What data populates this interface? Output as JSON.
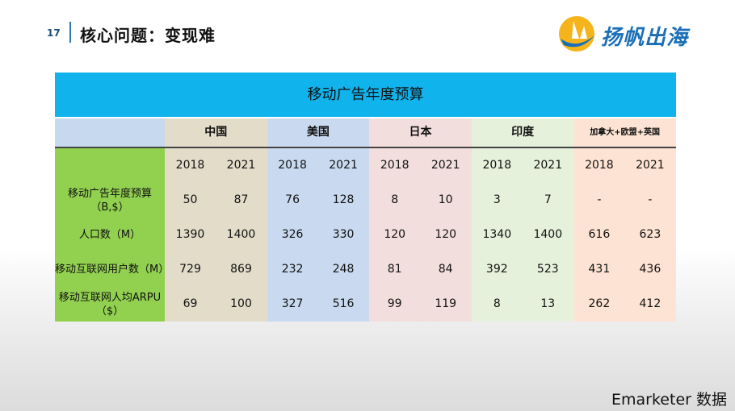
{
  "header": {
    "page_number": "17",
    "title": "核心问题：变现难",
    "logo_text": "扬帆出海"
  },
  "table": {
    "title": "移动广告年度预算",
    "regions": [
      "中国",
      "美国",
      "日本",
      "印度",
      "加拿大+欧盟+英国"
    ],
    "region_colors": [
      "#e2dcc9",
      "#c9daf0",
      "#f3dede",
      "#e6f1dc",
      "#fde3d3"
    ],
    "years": [
      "2018",
      "2021",
      "2018",
      "2021",
      "2018",
      "2021",
      "2018",
      "2021",
      "2018",
      "2021"
    ],
    "rows": [
      {
        "label": "移动广告年度预算（B,$）",
        "values": [
          "50",
          "87",
          "76",
          "128",
          "8",
          "10",
          "3",
          "7",
          "-",
          "-"
        ]
      },
      {
        "label": "人口数（M）",
        "values": [
          "1390",
          "1400",
          "326",
          "330",
          "120",
          "120",
          "1340",
          "1400",
          "616",
          "623"
        ]
      },
      {
        "label": "移动互联网用户数（M）",
        "values": [
          "729",
          "869",
          "232",
          "248",
          "81",
          "84",
          "392",
          "523",
          "431",
          "436"
        ]
      },
      {
        "label": "移动互联网人均ARPU（$）",
        "values": [
          "69",
          "100",
          "327",
          "516",
          "99",
          "119",
          "8",
          "13",
          "262",
          "412"
        ]
      }
    ]
  },
  "source": "Emarketer 数据"
}
